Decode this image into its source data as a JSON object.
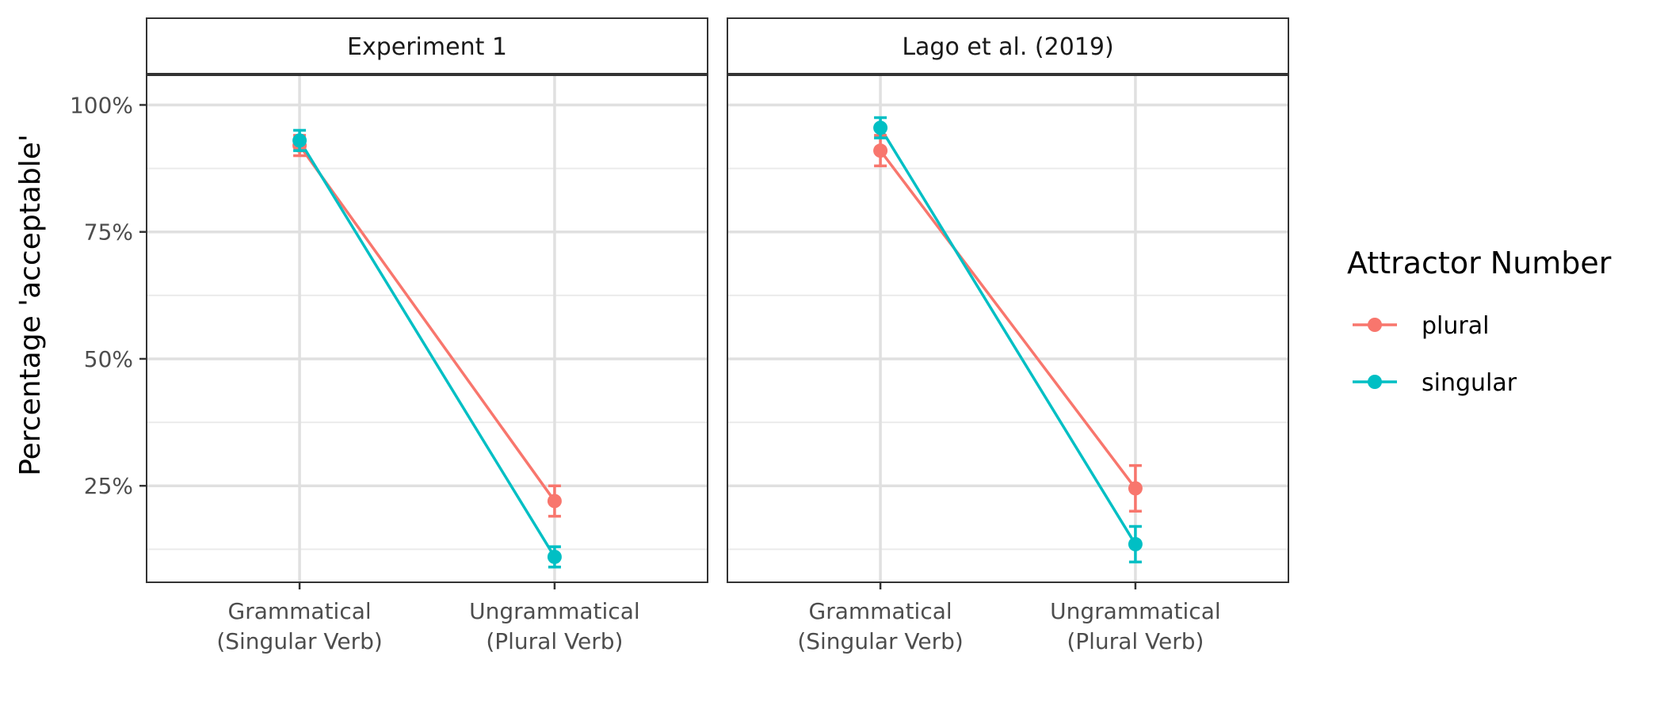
{
  "chart_data": {
    "type": "line",
    "ylabel": "Percentage 'acceptable'",
    "xlabel": "",
    "ylim": [
      0.06,
      1.06
    ],
    "y_ticks": [
      0.25,
      0.5,
      0.75,
      1.0
    ],
    "y_tick_labels": [
      "25%",
      "50%",
      "75%",
      "100%"
    ],
    "y_minor_ticks": [
      0.125,
      0.375,
      0.625,
      0.875
    ],
    "categories": [
      [
        "Grammatical",
        "(Singular Verb)"
      ],
      [
        "Ungrammatical",
        "(Plural Verb)"
      ]
    ],
    "grid": true,
    "legend": {
      "title": "Attractor Number",
      "position": "right"
    },
    "colors": {
      "plural": "#F8766D",
      "singular": "#00BFC4"
    },
    "panels": [
      {
        "title": "Experiment 1",
        "series": [
          {
            "name": "plural",
            "values": [
              0.92,
              0.22
            ],
            "lower": [
              0.9,
              0.19
            ],
            "upper": [
              0.94,
              0.25
            ]
          },
          {
            "name": "singular",
            "values": [
              0.93,
              0.11
            ],
            "lower": [
              0.91,
              0.09
            ],
            "upper": [
              0.95,
              0.13
            ]
          }
        ]
      },
      {
        "title": "Lago et al. (2019)",
        "series": [
          {
            "name": "plural",
            "values": [
              0.91,
              0.245
            ],
            "lower": [
              0.88,
              0.2
            ],
            "upper": [
              0.94,
              0.29
            ]
          },
          {
            "name": "singular",
            "values": [
              0.955,
              0.135
            ],
            "lower": [
              0.935,
              0.1
            ],
            "upper": [
              0.975,
              0.17
            ]
          }
        ]
      }
    ]
  }
}
